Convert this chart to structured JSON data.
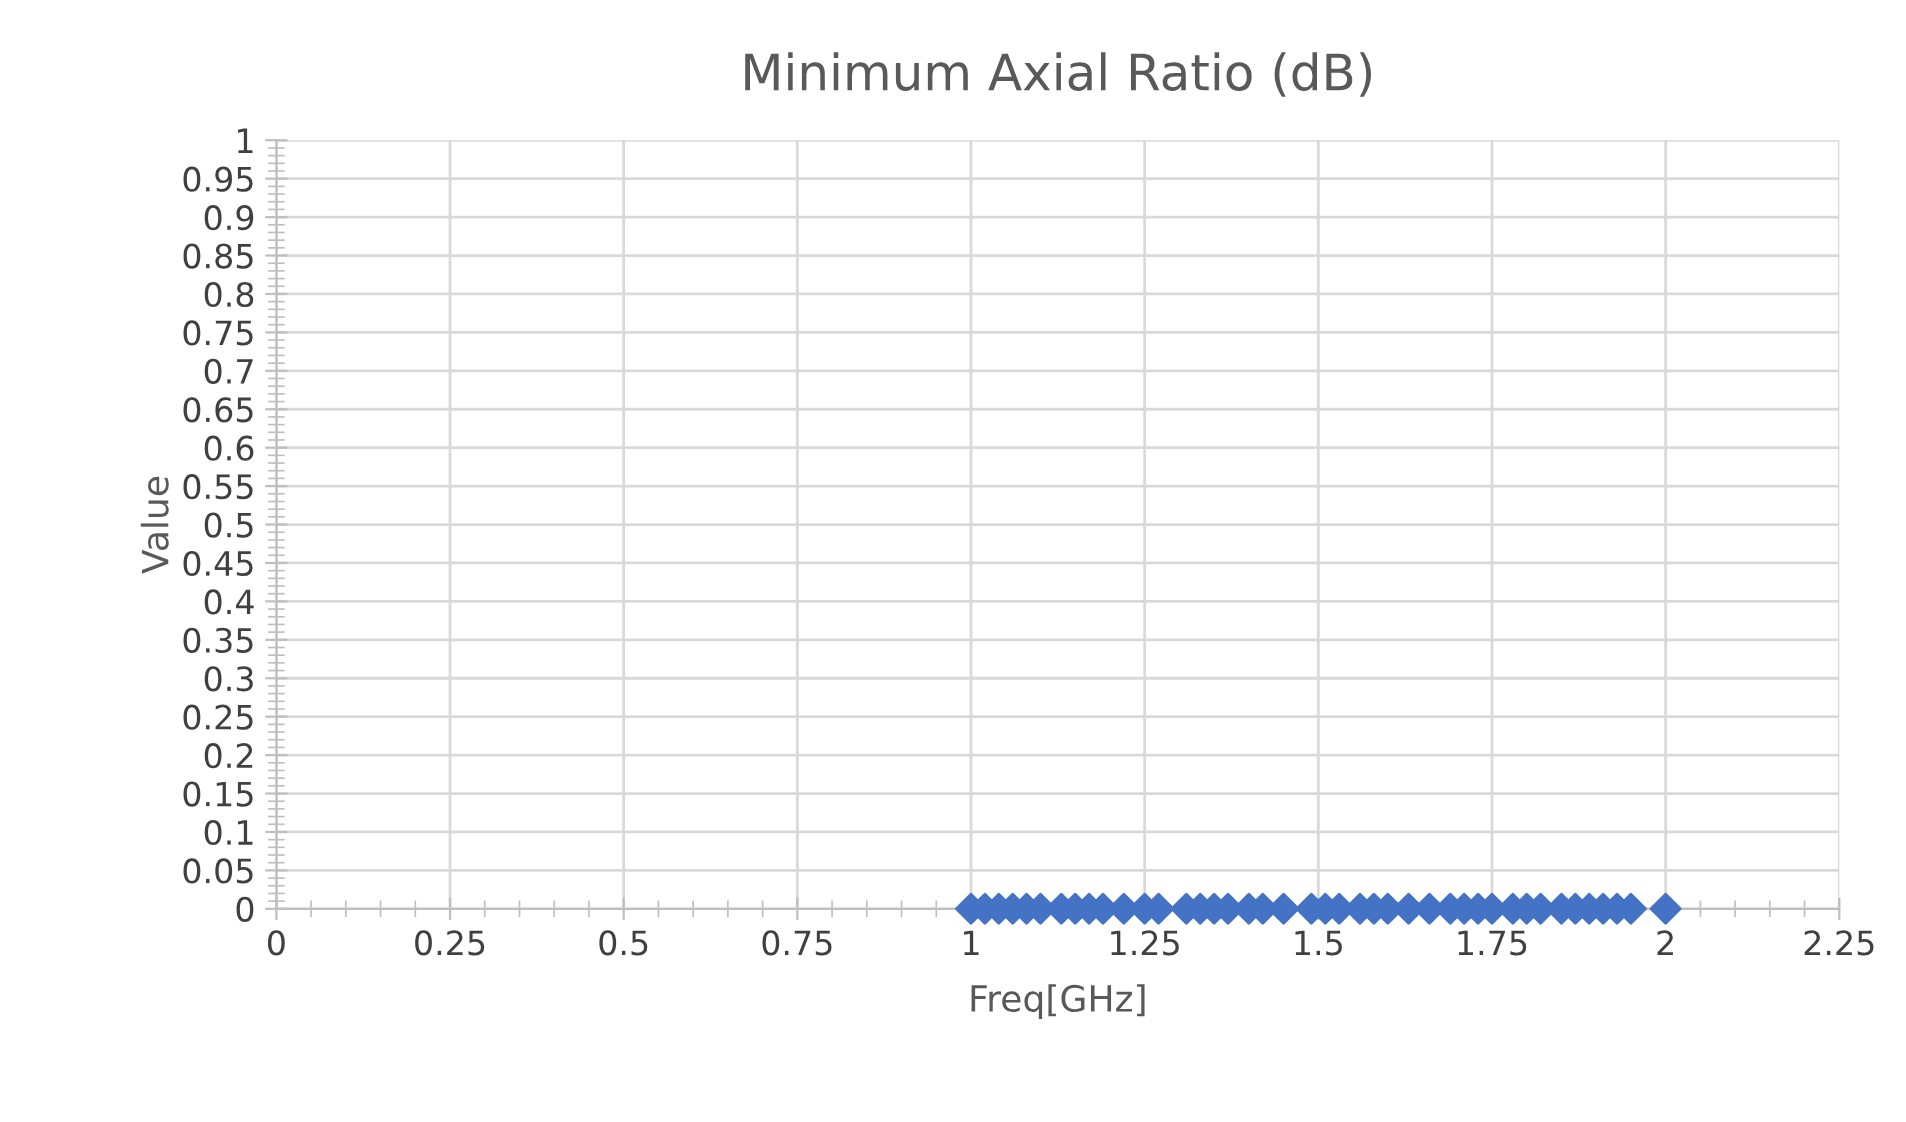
{
  "chart_data": {
    "type": "scatter",
    "title": "Minimum Axial Ratio (dB)",
    "xlabel": "Freq[GHz]",
    "ylabel": "Value",
    "x": [
      1.0,
      1.02,
      1.04,
      1.06,
      1.08,
      1.1,
      1.13,
      1.15,
      1.17,
      1.19,
      1.22,
      1.25,
      1.27,
      1.31,
      1.33,
      1.35,
      1.37,
      1.4,
      1.42,
      1.45,
      1.49,
      1.51,
      1.53,
      1.56,
      1.58,
      1.6,
      1.63,
      1.66,
      1.69,
      1.71,
      1.73,
      1.75,
      1.78,
      1.8,
      1.82,
      1.85,
      1.87,
      1.89,
      1.91,
      1.93,
      1.95,
      2.0
    ],
    "series": [
      {
        "color": "#4472c4",
        "values": [
          0,
          0,
          0,
          0,
          0,
          0,
          0,
          0,
          0,
          0,
          0,
          0,
          0,
          0,
          0,
          0,
          0,
          0,
          0,
          0,
          0,
          0,
          0,
          0,
          0,
          0,
          0,
          0,
          0,
          0,
          0,
          0,
          0,
          0,
          0,
          0,
          0,
          0,
          0,
          0,
          0,
          0
        ]
      }
    ],
    "xlim": [
      0,
      2.25
    ],
    "xticks": [
      0,
      0.25,
      0.5,
      0.75,
      1,
      1.25,
      1.5,
      1.75,
      2,
      2.25
    ],
    "ylim": [
      0,
      1
    ],
    "yticks": [
      0,
      0.05,
      0.1,
      0.15,
      0.2,
      0.25,
      0.3,
      0.35,
      0.4,
      0.45,
      0.5,
      0.55,
      0.6,
      0.65,
      0.7,
      0.75,
      0.8,
      0.85,
      0.9,
      0.95,
      1
    ],
    "grid": true,
    "marker": "diamond",
    "legend": false
  }
}
